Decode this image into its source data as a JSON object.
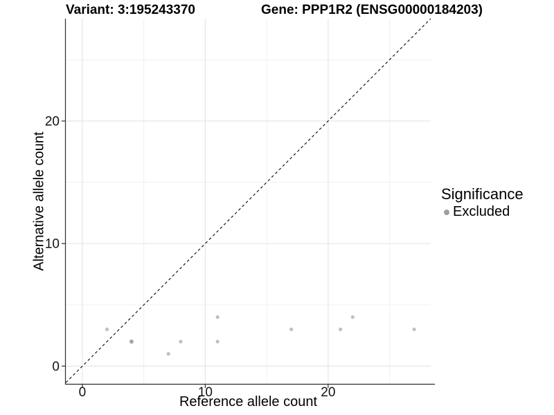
{
  "chart_data": {
    "type": "scatter",
    "title_left": "Variant: 3:195243370",
    "title_right": "Gene: PPP1R2 (ENSG00000184203)",
    "xlabel": "Reference allele count",
    "ylabel": "Alternative allele count",
    "x_range": [
      -1.35,
      28.35
    ],
    "y_range": [
      -1.45,
      28.35
    ],
    "x_major_ticks": [
      0,
      10,
      20
    ],
    "y_major_ticks": [
      0,
      10,
      20
    ],
    "x_minor_ticks": [
      5,
      15,
      25
    ],
    "y_minor_ticks": [
      5,
      15,
      25
    ],
    "grid": true,
    "background": "#ffffff",
    "major_grid_color": "#e3e3e3",
    "minor_grid_color": "#f0f0f0",
    "axis_color": "#2b2b2b",
    "identity_line": {
      "slope": 1,
      "intercept": 0,
      "style": "dashed",
      "color": "#1a1a1a"
    },
    "series": [
      {
        "name": "Excluded",
        "color": "#bfbfbf",
        "points": [
          {
            "x": 2,
            "y": 3
          },
          {
            "x": 4,
            "y": 2,
            "color": "#a6a6a6",
            "r": 3
          },
          {
            "x": 7,
            "y": 1
          },
          {
            "x": 8,
            "y": 2
          },
          {
            "x": 11,
            "y": 2
          },
          {
            "x": 11,
            "y": 4
          },
          {
            "x": 17,
            "y": 3
          },
          {
            "x": 21,
            "y": 3
          },
          {
            "x": 22,
            "y": 4
          },
          {
            "x": 27,
            "y": 3
          }
        ]
      }
    ],
    "legend": {
      "title": "Significance",
      "position": "right",
      "items": [
        {
          "label": "Excluded",
          "color": "#9e9e9e"
        }
      ]
    }
  }
}
